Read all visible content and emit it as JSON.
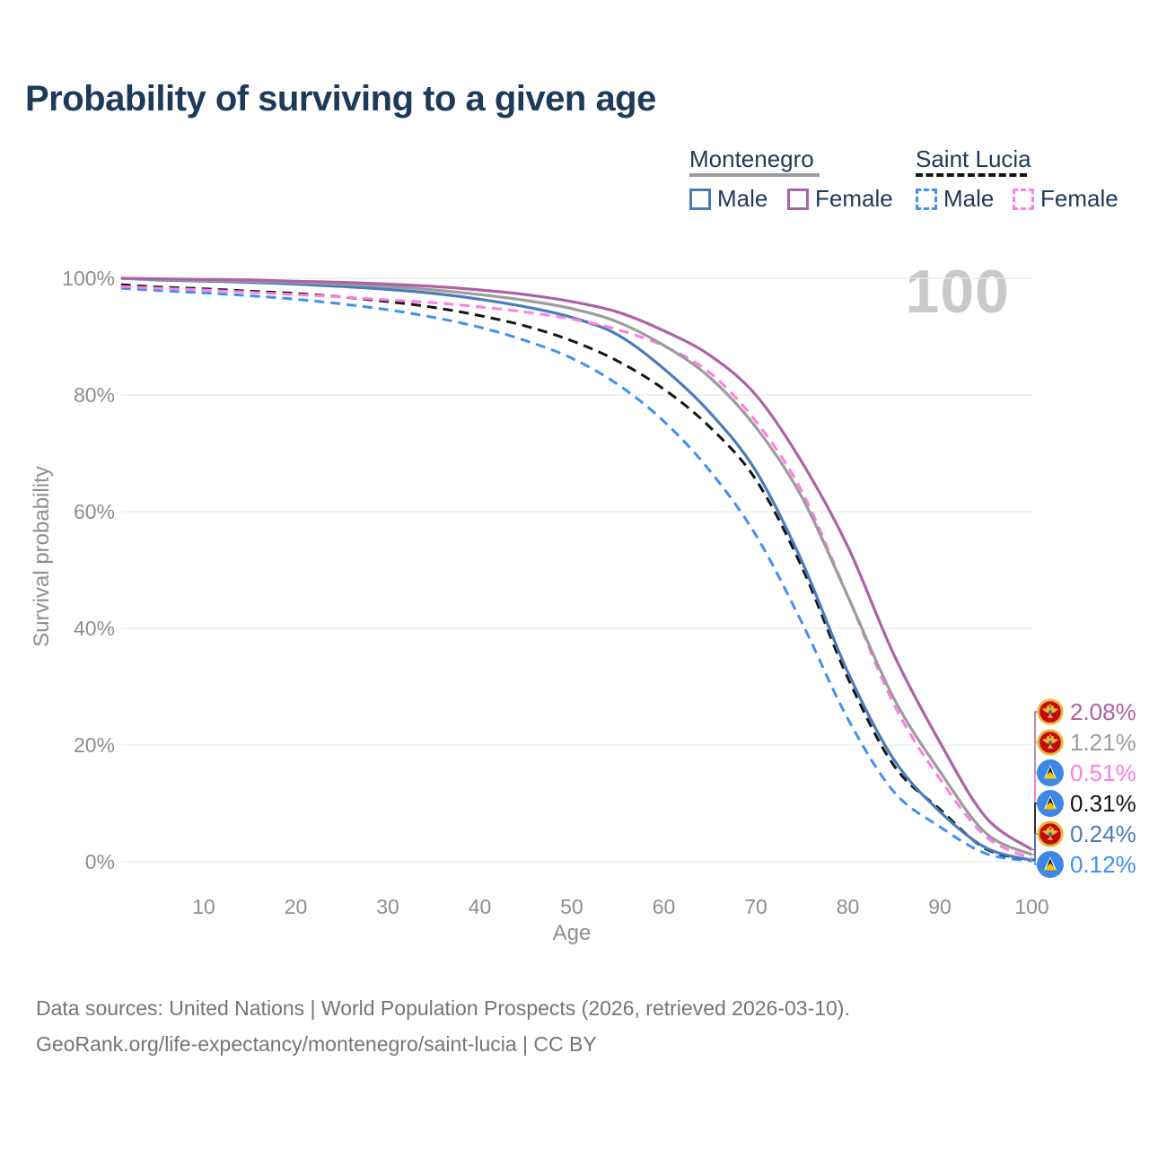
{
  "title": "Probability of surviving to a given age",
  "watermark": "100",
  "legend": {
    "groups": [
      {
        "country": "Montenegro",
        "line_style": "solid",
        "underline_color": "#9c9c9c",
        "items": [
          {
            "label": "Male",
            "color": "#4b7cba"
          },
          {
            "label": "Female",
            "color": "#ad62a5"
          }
        ]
      },
      {
        "country": "Saint Lucia",
        "line_style": "dashed",
        "underline_color": "#141414",
        "items": [
          {
            "label": "Male",
            "color": "#3f90f5"
          },
          {
            "label": "Female",
            "color": "#ff7de4"
          }
        ]
      }
    ]
  },
  "chart_data": {
    "type": "line",
    "title": "Probability of surviving to a given age",
    "xlabel": "Age",
    "ylabel": "Survival probability",
    "x": [
      1,
      5,
      10,
      15,
      20,
      25,
      30,
      35,
      40,
      45,
      50,
      55,
      60,
      65,
      70,
      75,
      80,
      85,
      90,
      95,
      100
    ],
    "x_ticks": [
      10,
      20,
      30,
      40,
      50,
      60,
      70,
      80,
      90,
      100
    ],
    "y_ticks": [
      0,
      20,
      40,
      60,
      80,
      100
    ],
    "y_tick_suffix": "%",
    "xlim": [
      1,
      100
    ],
    "ylim": [
      0,
      100
    ],
    "grid": true,
    "series": [
      {
        "id": "saint-lucia-male",
        "country": "Saint Lucia",
        "sex": "Male",
        "color": "#3f90f5",
        "dash": true,
        "values": [
          98.3,
          97.9,
          97.5,
          97.0,
          96.4,
          95.6,
          94.6,
          93.3,
          91.6,
          89.3,
          86.3,
          81.8,
          75.5,
          67.0,
          56.0,
          41.0,
          24.5,
          12.0,
          6.0,
          1.4,
          0.12
        ],
        "end_label": {
          "text": "0.12%",
          "flag": "saint-lucia"
        }
      },
      {
        "id": "saint-lucia-both",
        "country": "Saint Lucia",
        "sex": "Both",
        "color": "#141414",
        "dash": true,
        "values": [
          98.9,
          98.5,
          98.2,
          97.8,
          97.4,
          96.8,
          96.0,
          95.0,
          93.6,
          91.8,
          89.3,
          85.8,
          81.0,
          74.5,
          65.5,
          50.5,
          31.5,
          16.5,
          9.0,
          2.2,
          0.31
        ],
        "end_label": {
          "text": "0.31%",
          "flag": "saint-lucia"
        }
      },
      {
        "id": "montenegro-male",
        "country": "Montenegro",
        "sex": "Male",
        "color": "#4b7cba",
        "dash": false,
        "values": [
          100,
          99.7,
          99.5,
          99.3,
          99.0,
          98.6,
          98.1,
          97.4,
          96.4,
          95.1,
          93.3,
          90.3,
          84.5,
          77.0,
          67.0,
          51.5,
          32.5,
          17.5,
          8.6,
          2.4,
          0.24
        ],
        "end_label": {
          "text": "0.24%",
          "flag": "montenegro"
        }
      },
      {
        "id": "saint-lucia-female",
        "country": "Saint Lucia",
        "sex": "Female",
        "color": "#ff7de4",
        "dash": true,
        "values": [
          98.6,
          98.3,
          98.0,
          97.6,
          97.2,
          96.8,
          96.3,
          95.8,
          95.1,
          94.2,
          93.0,
          91.2,
          88.4,
          83.8,
          75.5,
          63.5,
          45.5,
          27.0,
          14.2,
          4.3,
          0.51
        ],
        "end_label": {
          "text": "0.51%",
          "flag": "saint-lucia"
        }
      },
      {
        "id": "montenegro-both",
        "country": "Montenegro",
        "sex": "Both",
        "color": "#9c9c9c",
        "dash": false,
        "values": [
          100,
          99.8,
          99.6,
          99.5,
          99.3,
          99.0,
          98.6,
          98.0,
          97.2,
          96.2,
          94.8,
          92.5,
          88.5,
          83.0,
          74.5,
          62.5,
          45.5,
          28.0,
          15.5,
          4.9,
          1.21
        ],
        "end_label": {
          "text": "1.21%",
          "flag": "montenegro"
        }
      },
      {
        "id": "montenegro-female",
        "country": "Montenegro",
        "sex": "Female",
        "color": "#ad62a5",
        "dash": false,
        "values": [
          100,
          99.9,
          99.8,
          99.7,
          99.5,
          99.3,
          99.0,
          98.6,
          98.0,
          97.2,
          96.0,
          94.2,
          91.0,
          86.8,
          80.0,
          68.5,
          54.0,
          35.5,
          20.5,
          7.6,
          2.08
        ],
        "end_label": {
          "text": "2.08%",
          "flag": "montenegro"
        }
      }
    ]
  },
  "footer": {
    "line1": "Data sources: United Nations | World Population Prospects (2026, retrieved 2026-03-10).",
    "line2": "GeoRank.org/life-expectancy/montenegro/saint-lucia | CC BY"
  }
}
